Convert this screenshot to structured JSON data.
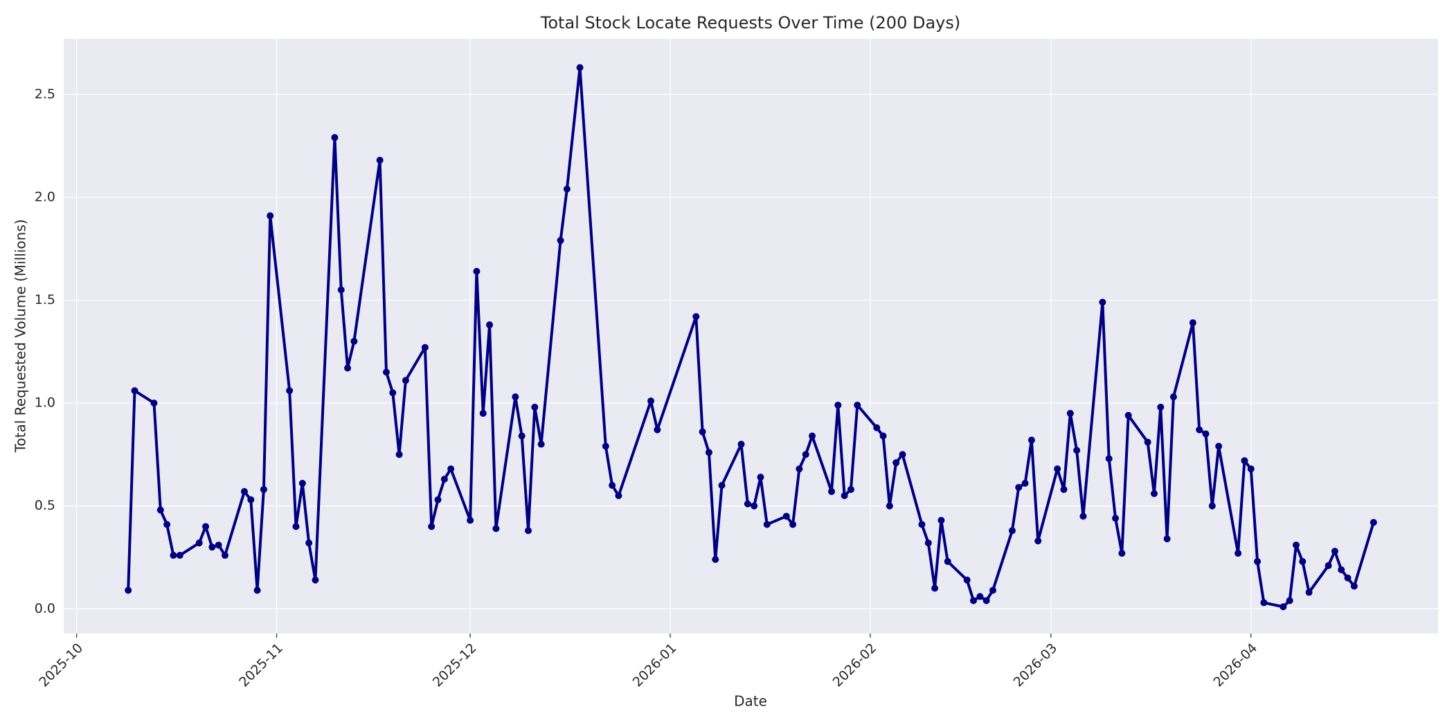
{
  "chart_data": {
    "type": "line",
    "title": "Total Stock Locate Requests Over Time (200 Days)",
    "xlabel": "Date",
    "ylabel": "Total Requested Volume (Millions)",
    "color": "#000080",
    "grid": true,
    "x": [
      "2025-10-09",
      "2025-10-10",
      "2025-10-13",
      "2025-10-14",
      "2025-10-15",
      "2025-10-16",
      "2025-10-17",
      "2025-10-20",
      "2025-10-21",
      "2025-10-22",
      "2025-10-23",
      "2025-10-24",
      "2025-10-27",
      "2025-10-28",
      "2025-10-29",
      "2025-10-30",
      "2025-10-31",
      "2025-11-03",
      "2025-11-04",
      "2025-11-05",
      "2025-11-06",
      "2025-11-07",
      "2025-11-10",
      "2025-11-11",
      "2025-11-12",
      "2025-11-13",
      "2025-11-17",
      "2025-11-18",
      "2025-11-19",
      "2025-11-20",
      "2025-11-21",
      "2025-11-24",
      "2025-11-25",
      "2025-11-26",
      "2025-11-27",
      "2025-11-28",
      "2025-12-01",
      "2025-12-02",
      "2025-12-03",
      "2025-12-04",
      "2025-12-05",
      "2025-12-08",
      "2025-12-09",
      "2025-12-10",
      "2025-12-11",
      "2025-12-12",
      "2025-12-15",
      "2025-12-16",
      "2025-12-18",
      "2025-12-22",
      "2025-12-23",
      "2025-12-24",
      "2025-12-29",
      "2025-12-30",
      "2026-01-05",
      "2026-01-06",
      "2026-01-07",
      "2026-01-08",
      "2026-01-09",
      "2026-01-12",
      "2026-01-13",
      "2026-01-14",
      "2026-01-15",
      "2026-01-16",
      "2026-01-19",
      "2026-01-20",
      "2026-01-21",
      "2026-01-22",
      "2026-01-23",
      "2026-01-26",
      "2026-01-27",
      "2026-01-28",
      "2026-01-29",
      "2026-01-30",
      "2026-02-02",
      "2026-02-03",
      "2026-02-04",
      "2026-02-05",
      "2026-02-06",
      "2026-02-09",
      "2026-02-10",
      "2026-02-11",
      "2026-02-12",
      "2026-02-13",
      "2026-02-16",
      "2026-02-17",
      "2026-02-18",
      "2026-02-19",
      "2026-02-20",
      "2026-02-23",
      "2026-02-24",
      "2026-02-25",
      "2026-02-26",
      "2026-02-27",
      "2026-03-02",
      "2026-03-03",
      "2026-03-04",
      "2026-03-05",
      "2026-03-06",
      "2026-03-09",
      "2026-03-10",
      "2026-03-11",
      "2026-03-12",
      "2026-03-13",
      "2026-03-16",
      "2026-03-17",
      "2026-03-18",
      "2026-03-19",
      "2026-03-20",
      "2026-03-23",
      "2026-03-24",
      "2026-03-25",
      "2026-03-26",
      "2026-03-27",
      "2026-03-30",
      "2026-03-31",
      "2026-04-01",
      "2026-04-02",
      "2026-04-03",
      "2026-04-06",
      "2026-04-07",
      "2026-04-08",
      "2026-04-09",
      "2026-04-10",
      "2026-04-13",
      "2026-04-14",
      "2026-04-15",
      "2026-04-16",
      "2026-04-17",
      "2026-04-20"
    ],
    "values": [
      0.09,
      1.06,
      1.0,
      0.48,
      0.41,
      0.26,
      0.26,
      0.32,
      0.4,
      0.3,
      0.31,
      0.26,
      0.57,
      0.53,
      0.09,
      0.58,
      1.91,
      1.06,
      0.4,
      0.61,
      0.32,
      0.14,
      2.29,
      1.55,
      1.17,
      1.3,
      2.18,
      1.15,
      1.05,
      0.75,
      1.11,
      1.27,
      0.4,
      0.53,
      0.63,
      0.68,
      0.43,
      1.64,
      0.95,
      1.38,
      0.39,
      1.03,
      0.84,
      0.38,
      0.98,
      0.8,
      1.79,
      2.04,
      2.63,
      0.79,
      0.6,
      0.55,
      1.01,
      0.87,
      1.42,
      0.86,
      0.76,
      0.24,
      0.6,
      0.8,
      0.51,
      0.5,
      0.64,
      0.41,
      0.45,
      0.41,
      0.68,
      0.75,
      0.84,
      0.57,
      0.99,
      0.55,
      0.58,
      0.99,
      0.88,
      0.84,
      0.5,
      0.71,
      0.75,
      0.41,
      0.32,
      0.1,
      0.43,
      0.23,
      0.14,
      0.04,
      0.06,
      0.04,
      0.09,
      0.38,
      0.59,
      0.61,
      0.82,
      0.33,
      0.68,
      0.58,
      0.95,
      0.77,
      0.45,
      1.49,
      0.73,
      0.44,
      0.27,
      0.94,
      0.81,
      0.56,
      0.98,
      0.34,
      1.03,
      1.39,
      0.87,
      0.85,
      0.5,
      0.79,
      0.27,
      0.72,
      0.68,
      0.23,
      0.03,
      0.01,
      0.04,
      0.31,
      0.23,
      0.08,
      0.21,
      0.28,
      0.19,
      0.15,
      0.11,
      0.42
    ],
    "xlim": [
      "2025-09-29",
      "2026-04-30"
    ],
    "xticks": [
      {
        "value": "2025-10-01",
        "label": "2025-10"
      },
      {
        "value": "2025-11-01",
        "label": "2025-11"
      },
      {
        "value": "2025-12-01",
        "label": "2025-12"
      },
      {
        "value": "2026-01-01",
        "label": "2026-01"
      },
      {
        "value": "2026-02-01",
        "label": "2026-02"
      },
      {
        "value": "2026-03-01",
        "label": "2026-03"
      },
      {
        "value": "2026-04-01",
        "label": "2026-04"
      }
    ],
    "ylim": [
      -0.12,
      2.77
    ],
    "yticks": [
      {
        "value": 0,
        "label": "0.0"
      },
      0.5,
      {
        "value": 1,
        "label": "1.0"
      },
      1.5,
      {
        "value": 2,
        "label": "2.0"
      },
      2.5
    ]
  }
}
